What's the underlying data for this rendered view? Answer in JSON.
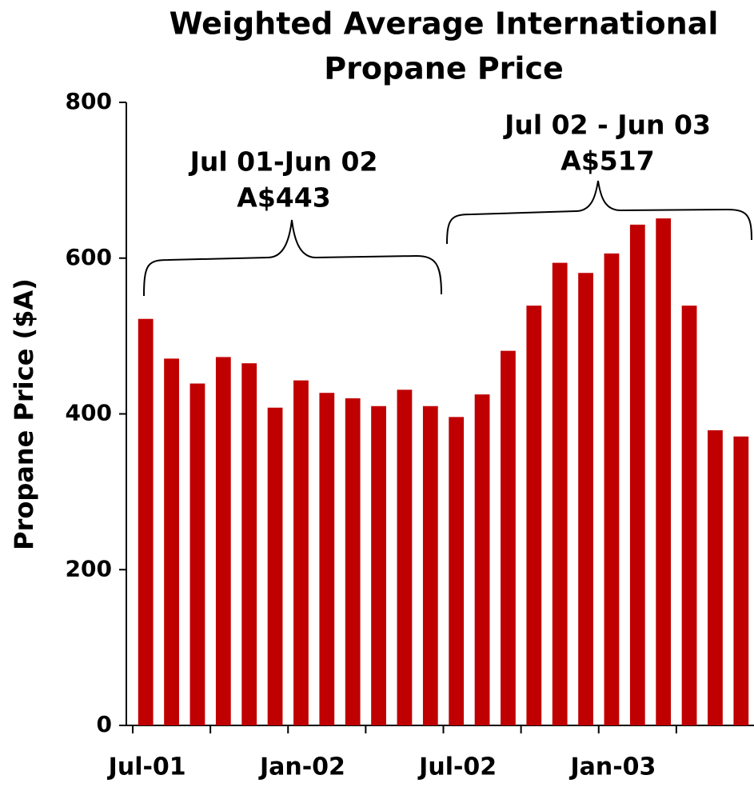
{
  "chart_data": {
    "type": "bar",
    "title": [
      "Weighted Average International",
      "Propane Price"
    ],
    "y_label": "Propane Price ($A)",
    "categories": [
      "Jul-01",
      null,
      null,
      null,
      null,
      null,
      "Jan-02",
      null,
      null,
      null,
      null,
      null,
      "Jul-02",
      null,
      null,
      null,
      null,
      null,
      "Jan-03",
      null,
      null,
      null,
      null,
      null
    ],
    "values": [
      522,
      471,
      439,
      473,
      465,
      408,
      443,
      427,
      420,
      410,
      431,
      410,
      396,
      425,
      481,
      539,
      594,
      581,
      606,
      643,
      651,
      539,
      379,
      371
    ],
    "color": "#c00000",
    "ylim": [
      0,
      800
    ],
    "yticks": [
      0,
      200,
      400,
      600,
      800
    ],
    "grid": false,
    "annotations": [
      [
        "Jul 01-Jun 02",
        "A$443"
      ],
      [
        "Jul 02 - Jun 03",
        "A$517"
      ]
    ]
  }
}
